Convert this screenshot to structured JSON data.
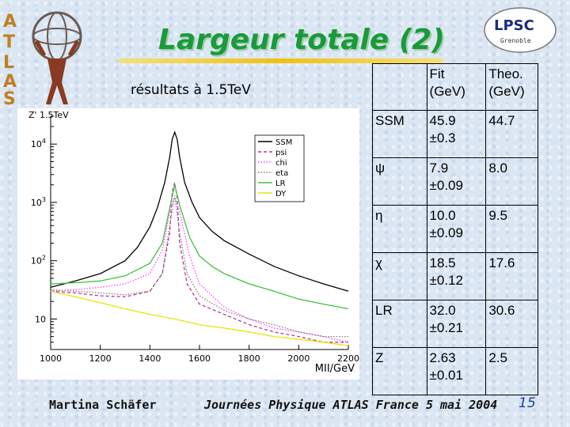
{
  "slide": {
    "title": "Largeur totale (2)",
    "subtitle": "résultats à 1.5TeV",
    "author": "Martina Schäfer",
    "conference": "Journées Physique ATLAS France 5 mai 2004",
    "page_number": "15",
    "logo_atlas_text": "ATLAS",
    "logo_lpsc_text": "LPSC",
    "logo_lpsc_sub": "Grenoble"
  },
  "chart_data": {
    "type": "line",
    "title": "Z' 1.5TeV",
    "xlabel": "MII/GeV",
    "ylabel": "",
    "x_ticks": [
      "1000",
      "1200",
      "1400",
      "1600",
      "1800",
      "2000",
      "2200"
    ],
    "y_ticks": [
      "10",
      "10^2",
      "10^3",
      "10^4"
    ],
    "xlim": [
      1000,
      2200
    ],
    "ylim": [
      3,
      30000
    ],
    "yscale": "log",
    "legend_position": "top-right",
    "series": [
      {
        "name": "SSM",
        "color": "#000000",
        "style": "solid",
        "x": [
          1000,
          1100,
          1200,
          1300,
          1350,
          1400,
          1430,
          1460,
          1480,
          1490,
          1500,
          1510,
          1520,
          1540,
          1570,
          1600,
          1650,
          1700,
          1800,
          1900,
          2000,
          2100,
          2200
        ],
        "y": [
          35,
          45,
          60,
          100,
          170,
          380,
          800,
          2200,
          6000,
          12000,
          16000,
          12000,
          6000,
          2200,
          1000,
          550,
          320,
          220,
          130,
          80,
          55,
          40,
          30
        ]
      },
      {
        "name": "psi",
        "color": "#c0309a",
        "style": "dashed",
        "x": [
          1000,
          1100,
          1200,
          1300,
          1400,
          1450,
          1480,
          1490,
          1500,
          1510,
          1520,
          1550,
          1600,
          1700,
          1800,
          1900,
          2000,
          2100,
          2200
        ],
        "y": [
          30,
          28,
          25,
          24,
          30,
          60,
          300,
          1500,
          2200,
          1200,
          200,
          40,
          18,
          12,
          8,
          6,
          5,
          4,
          4
        ]
      },
      {
        "name": "chi",
        "color": "#ff40ff",
        "style": "dotted",
        "x": [
          1000,
          1100,
          1200,
          1300,
          1400,
          1450,
          1480,
          1500,
          1520,
          1560,
          1600,
          1700,
          1800,
          1900,
          2000,
          2100,
          2200
        ],
        "y": [
          30,
          32,
          35,
          40,
          60,
          150,
          700,
          1200,
          700,
          120,
          40,
          16,
          10,
          7,
          6,
          5,
          4
        ]
      },
      {
        "name": "eta",
        "color": "#7a7a7a",
        "style": "dotted",
        "x": [
          1000,
          1100,
          1200,
          1300,
          1400,
          1450,
          1480,
          1500,
          1520,
          1550,
          1600,
          1700,
          1800,
          1900,
          2000,
          2100,
          2200
        ],
        "y": [
          32,
          30,
          28,
          26,
          30,
          60,
          400,
          1300,
          300,
          60,
          25,
          14,
          10,
          8,
          6,
          5,
          5
        ]
      },
      {
        "name": "LR",
        "color": "#40c040",
        "style": "solid",
        "x": [
          1000,
          1100,
          1200,
          1300,
          1400,
          1450,
          1480,
          1500,
          1520,
          1560,
          1600,
          1650,
          1700,
          1800,
          1900,
          2000,
          2100,
          2200
        ],
        "y": [
          40,
          42,
          45,
          55,
          90,
          200,
          800,
          2000,
          900,
          250,
          120,
          80,
          60,
          40,
          30,
          22,
          18,
          15
        ]
      },
      {
        "name": "DY",
        "color": "#e6e600",
        "style": "solid",
        "x": [
          1000,
          1100,
          1200,
          1300,
          1400,
          1500,
          1600,
          1700,
          1800,
          1900,
          2000,
          2100,
          2200
        ],
        "y": [
          30,
          24,
          19,
          15,
          12,
          10,
          8,
          7,
          6,
          5,
          4.5,
          4,
          3.5
        ]
      }
    ]
  },
  "table": {
    "headers": [
      "",
      "Fit (GeV)",
      "Theo. (GeV)"
    ],
    "rows": [
      {
        "model": "SSM",
        "fit": "45.9",
        "err": "±0.3",
        "theo": "44.7"
      },
      {
        "model": "ψ",
        "fit": "7.9",
        "err": "±0.09",
        "theo": "8.0"
      },
      {
        "model": "η",
        "fit": "10.0",
        "err": "±0.09",
        "theo": "9.5"
      },
      {
        "model": "χ",
        "fit": "18.5",
        "err": "±0.12",
        "theo": "17.6"
      },
      {
        "model": "LR",
        "fit": "32.0",
        "err": "±0.21",
        "theo": "30.6"
      },
      {
        "model": "Z",
        "fit": "2.63",
        "err": "±0.01",
        "theo": "2.5"
      }
    ]
  }
}
